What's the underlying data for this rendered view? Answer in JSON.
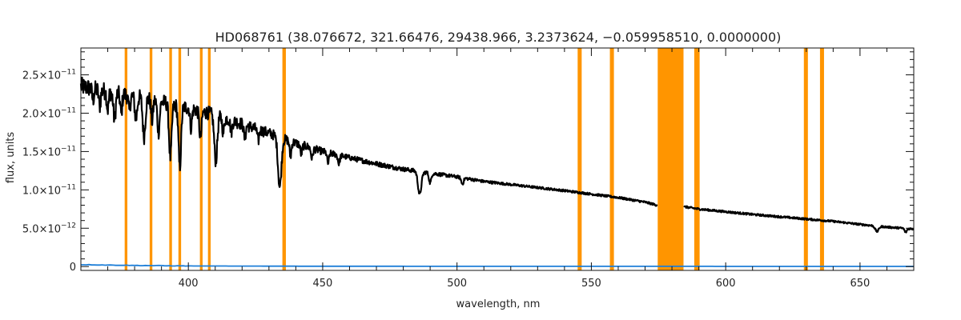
{
  "chart_data": {
    "type": "line",
    "title": "HD068761    (38.076672, 321.66476, 29438.966, 3.2373624, −0.059958510, 0.0000000)",
    "xlabel": "wavelength, nm",
    "ylabel": "flux, units",
    "xlim": [
      360,
      670
    ],
    "ylim": [
      -5e-13,
      2.85e-11
    ],
    "grid": false,
    "x_ticks": [
      400,
      450,
      500,
      550,
      600,
      650
    ],
    "x_tick_labels": [
      "400",
      "450",
      "500",
      "550",
      "600",
      "650"
    ],
    "y_ticks": [
      0,
      5e-12,
      1e-11,
      1.5e-11,
      2e-11,
      2.5e-11
    ],
    "y_tick_labels": [
      {
        "mantissa": "0",
        "exp": ""
      },
      {
        "mantissa": "5.0×10",
        "exp": "−12"
      },
      {
        "mantissa": "1.0×10",
        "exp": "−11"
      },
      {
        "mantissa": "1.5×10",
        "exp": "−11"
      },
      {
        "mantissa": "2.0×10",
        "exp": "−11"
      },
      {
        "mantissa": "2.5×10",
        "exp": "−11"
      }
    ],
    "colors": {
      "flux": "#000000",
      "error": "#1e7fd8",
      "masked": "#ff9500"
    },
    "masked_regions": [
      [
        376.3,
        377.3
      ],
      [
        385.6,
        386.6
      ],
      [
        392.9,
        393.9
      ],
      [
        396.3,
        397.3
      ],
      [
        404.3,
        405.3
      ],
      [
        407.3,
        408.3
      ],
      [
        435.0,
        436.3
      ],
      [
        544.9,
        546.4
      ],
      [
        556.9,
        558.4
      ],
      [
        574.7,
        584.3
      ],
      [
        588.3,
        590.3
      ],
      [
        629.1,
        630.6
      ],
      [
        635.1,
        636.6
      ]
    ],
    "series": [
      {
        "kind": "flux",
        "continuum": [
          [
            360,
            2.35e-11
          ],
          [
            370,
            2.28e-11
          ],
          [
            380,
            2.22e-11
          ],
          [
            390,
            2.15e-11
          ],
          [
            400,
            2.07e-11
          ],
          [
            410,
            1.98e-11
          ],
          [
            420,
            1.86e-11
          ],
          [
            430,
            1.74e-11
          ],
          [
            440,
            1.61e-11
          ],
          [
            450,
            1.5e-11
          ],
          [
            460,
            1.42e-11
          ],
          [
            470,
            1.34e-11
          ],
          [
            480,
            1.27e-11
          ],
          [
            490,
            1.22e-11
          ],
          [
            500,
            1.17e-11
          ],
          [
            510,
            1.11e-11
          ],
          [
            520,
            1.07e-11
          ],
          [
            530,
            1.03e-11
          ],
          [
            540,
            9.9e-12
          ],
          [
            550,
            9.45e-12
          ],
          [
            560,
            9e-12
          ],
          [
            570,
            8.4e-12
          ],
          [
            574.5,
            8e-12
          ],
          [
            584.5,
            7.8e-12
          ],
          [
            590,
            7.5e-12
          ],
          [
            600,
            7.15e-12
          ],
          [
            610,
            6.8e-12
          ],
          [
            620,
            6.5e-12
          ],
          [
            630,
            6.2e-12
          ],
          [
            640,
            5.9e-12
          ],
          [
            650,
            5.5e-12
          ],
          [
            660,
            5.15e-12
          ],
          [
            670,
            4.9e-12
          ]
        ],
        "gaps": [
          [
            574.5,
            584.5
          ]
        ],
        "absorption_lines": [
          [
            364.5,
            1.4e-12,
            0.5
          ],
          [
            367,
            2e-12,
            0.5
          ],
          [
            370,
            2.3e-12,
            0.5
          ],
          [
            372.5,
            3.5e-12,
            0.6
          ],
          [
            375,
            2.6e-12,
            0.5
          ],
          [
            378,
            2e-12,
            0.5
          ],
          [
            380.5,
            3e-12,
            0.6
          ],
          [
            383.5,
            5e-12,
            0.7
          ],
          [
            386.5,
            2.8e-12,
            0.5
          ],
          [
            388.9,
            4e-12,
            0.6
          ],
          [
            393.3,
            7e-12,
            0.7
          ],
          [
            396.8,
            8e-12,
            0.7
          ],
          [
            401,
            2.5e-12,
            0.5
          ],
          [
            404.5,
            3.5e-12,
            0.6
          ],
          [
            410.2,
            6e-12,
            0.8
          ],
          [
            413,
            2e-12,
            0.5
          ],
          [
            416,
            1.5e-12,
            0.5
          ],
          [
            421,
            1.8e-12,
            0.5
          ],
          [
            426,
            1.5e-12,
            0.5
          ],
          [
            434.0,
            6.5e-12,
            0.9
          ],
          [
            438,
            2e-12,
            0.5
          ],
          [
            442,
            1.2e-12,
            0.5
          ],
          [
            446,
            1.3e-12,
            0.5
          ],
          [
            452,
            1.4e-12,
            0.5
          ],
          [
            456,
            1.1e-12,
            0.5
          ],
          [
            486.1,
            3e-12,
            0.9
          ],
          [
            490,
            1.3e-12,
            0.6
          ],
          [
            502,
            8e-13,
            0.6
          ],
          [
            656.3,
            7e-13,
            0.9
          ],
          [
            667,
            5e-13,
            0.6
          ]
        ],
        "noise_amplitude": [
          [
            360,
            1.2e-12
          ],
          [
            420,
            8e-13
          ],
          [
            460,
            3.5e-13
          ],
          [
            520,
            1.5e-13
          ],
          [
            670,
            1.2e-13
          ]
        ]
      },
      {
        "kind": "error",
        "points": [
          [
            360,
            2.5e-13
          ],
          [
            380,
            1.5e-13
          ],
          [
            400,
            8e-14
          ],
          [
            450,
            4e-14
          ],
          [
            670,
            2e-14
          ]
        ]
      }
    ]
  }
}
